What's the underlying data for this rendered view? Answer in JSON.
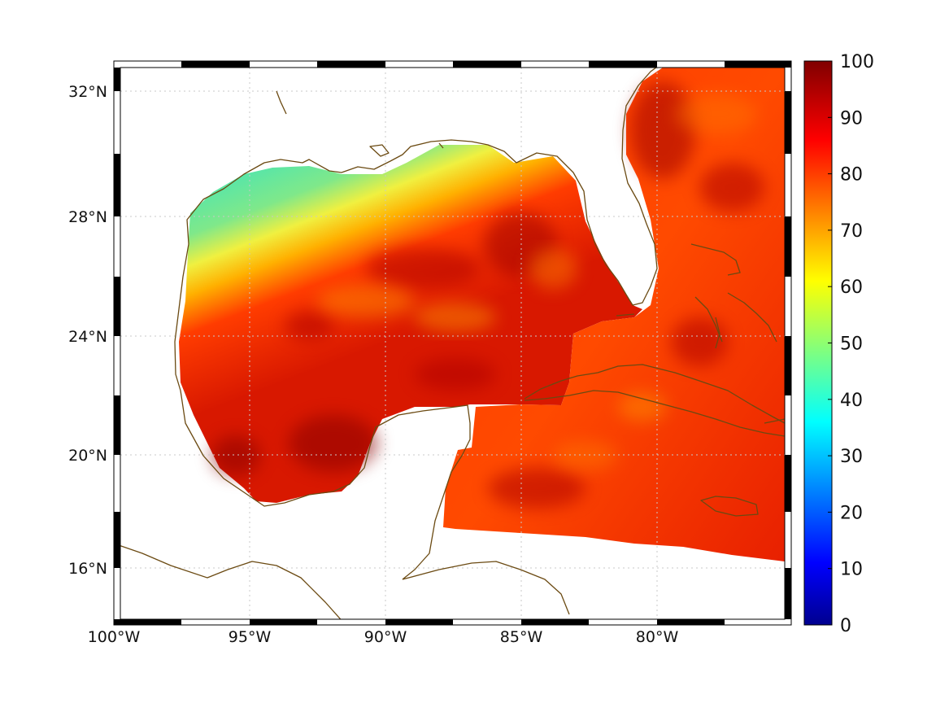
{
  "map": {
    "colors": {
      "coastline": "#6b4a12",
      "gridline": "#bdbdbd",
      "land": "#ffffff",
      "field_low": "#58e6a8",
      "field_mid": "#ffb000",
      "field_high": "#c80000"
    },
    "x_ticks": [
      {
        "label": "100°W"
      },
      {
        "label": "95°W"
      },
      {
        "label": "90°W"
      },
      {
        "label": "85°W"
      },
      {
        "label": "80°W"
      }
    ],
    "y_ticks": [
      {
        "label": "32°N"
      },
      {
        "label": "28°N"
      },
      {
        "label": "24°N"
      },
      {
        "label": "20°N"
      },
      {
        "label": "16°N"
      }
    ],
    "colorbar": {
      "min": 0,
      "max": 100,
      "ticks": [
        "100",
        "90",
        "80",
        "70",
        "60",
        "50",
        "40",
        "30",
        "20",
        "10",
        "0"
      ],
      "colormap": "jet"
    }
  }
}
